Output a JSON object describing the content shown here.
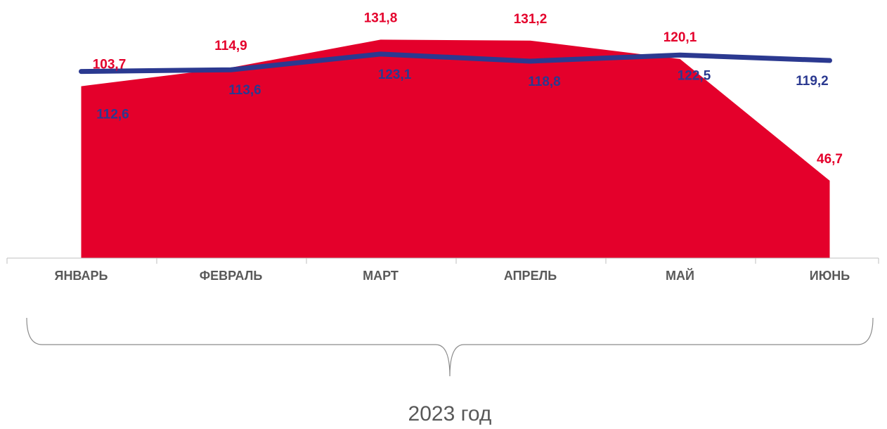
{
  "chart_data": {
    "type": "area",
    "categories": [
      "ЯНВАРЬ",
      "ФЕВРАЛЬ",
      "МАРТ",
      "АПРЕЛЬ",
      "МАЙ",
      "ИЮНЬ"
    ],
    "series": [
      {
        "type": "area",
        "color": "#e4002b",
        "values": [
          103.7,
          114.9,
          131.8,
          131.2,
          120.1,
          46.7
        ],
        "value_labels": [
          "103,7",
          "114,9",
          "131,8",
          "131,2",
          "120,1",
          "46,7"
        ]
      },
      {
        "type": "line",
        "color": "#2b3990",
        "values": [
          112.6,
          113.6,
          123.1,
          118.8,
          122.5,
          119.2
        ],
        "value_labels": [
          "112,6",
          "113,6",
          "123,1",
          "118,8",
          "122,5",
          "119,2"
        ]
      }
    ],
    "ylim": [
      0,
      140
    ],
    "xlabel": "2023 год"
  }
}
